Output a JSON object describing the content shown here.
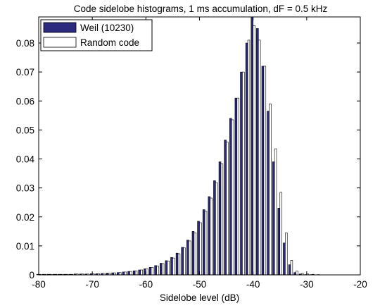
{
  "chart_data": {
    "type": "bar",
    "title": "Code sidelobe histograms, 1 ms accumulation, dF = 0.5 kHz",
    "xlabel": "Sidelobe level (dB)",
    "ylabel": "",
    "xlim": [
      -80,
      -20
    ],
    "ylim": [
      0,
      0.089
    ],
    "xticks": [
      -80,
      -70,
      -60,
      -50,
      -40,
      -30,
      -20
    ],
    "yticks": [
      0,
      0.01,
      0.02,
      0.03,
      0.04,
      0.05,
      0.06,
      0.07,
      0.08
    ],
    "xtick_labels": [
      "-80",
      "-70",
      "-60",
      "-50",
      "-40",
      "-30",
      "-20"
    ],
    "ytick_labels": [
      "0",
      "0.01",
      "0.02",
      "0.03",
      "0.04",
      "0.05",
      "0.06",
      "0.07",
      "0.08"
    ],
    "grid": false,
    "legend_position": "top-left",
    "bin_width": 1,
    "x": [
      -80,
      -79,
      -78,
      -77,
      -76,
      -75,
      -74,
      -73,
      -72,
      -71,
      -70,
      -69,
      -68,
      -67,
      -66,
      -65,
      -64,
      -63,
      -62,
      -61,
      -60,
      -59,
      -58,
      -57,
      -56,
      -55,
      -54,
      -53,
      -52,
      -51,
      -50,
      -49,
      -48,
      -47,
      -46,
      -45,
      -44,
      -43,
      -42,
      -41,
      -40,
      -39,
      -38,
      -37,
      -36,
      -35,
      -34,
      -33,
      -32,
      -31,
      -30,
      -29,
      -28
    ],
    "series": [
      {
        "name": "Weil (10230)",
        "color": "#2b2a7e",
        "values": [
          0.0002,
          0.0002,
          0.0002,
          0.0002,
          0.0002,
          0.0002,
          0.0002,
          0.0003,
          0.0003,
          0.0003,
          0.0004,
          0.0004,
          0.0005,
          0.0006,
          0.0007,
          0.0008,
          0.001,
          0.0012,
          0.0014,
          0.0017,
          0.0021,
          0.0026,
          0.0032,
          0.004,
          0.0049,
          0.006,
          0.0075,
          0.0095,
          0.012,
          0.015,
          0.0185,
          0.0225,
          0.027,
          0.0325,
          0.039,
          0.0465,
          0.054,
          0.061,
          0.07,
          0.08,
          0.089,
          0.085,
          0.072,
          0.0565,
          0.039,
          0.023,
          0.011,
          0.0035,
          0.0008,
          0.0003,
          0.0001,
          0.0001,
          0.0
        ]
      },
      {
        "name": "Random code",
        "color": "#ffffff",
        "values": [
          0.0002,
          0.0002,
          0.0002,
          0.0002,
          0.0002,
          0.0002,
          0.0002,
          0.0003,
          0.0003,
          0.0003,
          0.0004,
          0.0004,
          0.0005,
          0.0006,
          0.0007,
          0.0008,
          0.001,
          0.0012,
          0.0014,
          0.0017,
          0.0021,
          0.0026,
          0.0031,
          0.0039,
          0.0048,
          0.0058,
          0.0073,
          0.0093,
          0.0117,
          0.0145,
          0.018,
          0.022,
          0.0265,
          0.0318,
          0.0383,
          0.0458,
          0.0535,
          0.061,
          0.07,
          0.081,
          0.086,
          0.081,
          0.072,
          0.059,
          0.0435,
          0.0285,
          0.0145,
          0.005,
          0.0013,
          0.0005,
          0.0003,
          0.0002,
          0.0001
        ]
      }
    ]
  }
}
